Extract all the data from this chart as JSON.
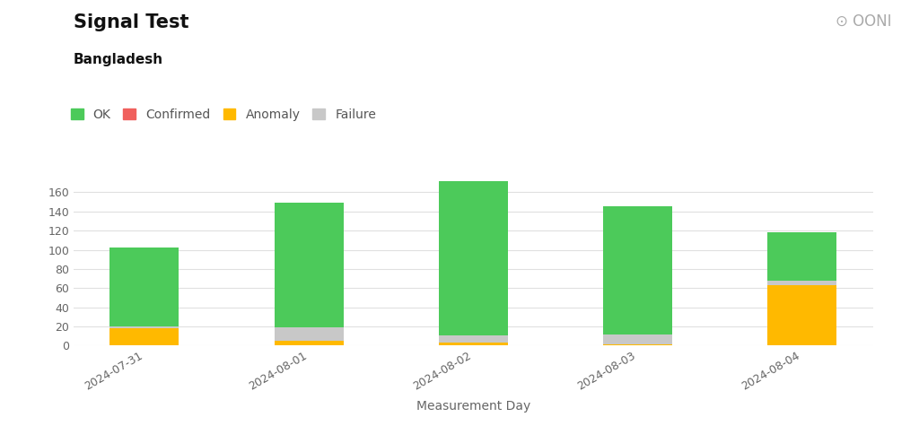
{
  "title": "Signal Test",
  "subtitle": "Bangladesh",
  "categories": [
    "2024-07-31",
    "2024-08-01",
    "2024-08-02",
    "2024-08-03",
    "2024-08-04"
  ],
  "ok": [
    82,
    130,
    161,
    133,
    50
  ],
  "confirmed": [
    0,
    0,
    0,
    0,
    0
  ],
  "anomaly": [
    18,
    5,
    3,
    1,
    63
  ],
  "failure": [
    2,
    14,
    8,
    11,
    5
  ],
  "colors": {
    "ok": "#4cca5a",
    "confirmed": "#f0605d",
    "anomaly": "#ffb900",
    "failure": "#c8c8c8"
  },
  "xlabel": "Measurement Day",
  "ylim": [
    0,
    185
  ],
  "yticks": [
    0,
    20,
    40,
    60,
    80,
    100,
    120,
    140,
    160
  ],
  "background_color": "#ffffff",
  "grid_color": "#e0e0e0",
  "bar_width": 0.42,
  "title_fontsize": 15,
  "subtitle_fontsize": 11,
  "legend_fontsize": 10,
  "tick_fontsize": 9
}
